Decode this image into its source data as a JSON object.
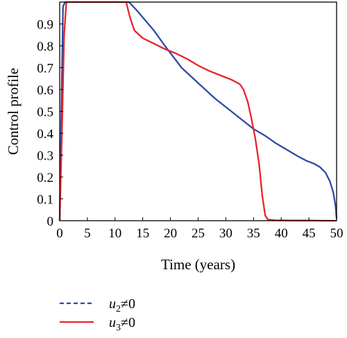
{
  "chart_data": {
    "type": "line",
    "title": "",
    "xlabel": "Time (years)",
    "ylabel": "Control profile",
    "xlim": [
      0,
      50
    ],
    "ylim": [
      0,
      1
    ],
    "xticks": [
      0,
      5,
      10,
      15,
      20,
      25,
      30,
      35,
      40,
      45,
      50
    ],
    "yticks": [
      0,
      0.1,
      0.2,
      0.3,
      0.4,
      0.5,
      0.6,
      0.7,
      0.8,
      0.9
    ],
    "xtick_labels": [
      "0",
      "5",
      "10",
      "15",
      "20",
      "25",
      "30",
      "35",
      "40",
      "45",
      "50"
    ],
    "ytick_labels": [
      "0",
      "0.1",
      "0.2",
      "0.3",
      "0.4",
      "0.5",
      "0.6",
      "0.7",
      "0.8",
      "0.9"
    ],
    "grid": false,
    "legend_placement": "bottom-left",
    "series": [
      {
        "name": "u2≠0",
        "legend_var": "u",
        "legend_sub": "2",
        "legend_rel": "≠0",
        "color": "#2e4aa8",
        "legend_style": "dashed",
        "x": [
          0,
          0.3,
          0.6,
          1,
          3,
          6,
          9,
          11,
          12.5,
          14,
          17,
          19,
          22,
          25,
          28,
          31,
          33,
          35,
          37,
          39,
          41,
          43,
          44.5,
          46,
          47,
          48,
          48.8,
          49.4,
          49.8,
          50
        ],
        "y": [
          0,
          0.5,
          0.98,
          1,
          1,
          1,
          1,
          1,
          1,
          0.96,
          0.87,
          0.8,
          0.7,
          0.63,
          0.56,
          0.5,
          0.46,
          0.42,
          0.39,
          0.355,
          0.325,
          0.295,
          0.275,
          0.26,
          0.245,
          0.22,
          0.18,
          0.13,
          0.07,
          0.01
        ]
      },
      {
        "name": "u3≠0",
        "legend_var": "u",
        "legend_sub": "3",
        "legend_rel": "≠0",
        "color": "#e8242b",
        "legend_style": "solid",
        "x": [
          0,
          0.4,
          0.8,
          1.2,
          3,
          6,
          9,
          11,
          12,
          12.7,
          13.5,
          15,
          17,
          19,
          21,
          23,
          25,
          27,
          29,
          31,
          32.5,
          33.2,
          34,
          34.6,
          35.3,
          36,
          36.6,
          37.1,
          37.6,
          39,
          42,
          45,
          48,
          50
        ],
        "y": [
          0,
          0.4,
          0.85,
          1,
          1,
          1,
          1,
          1,
          1,
          0.93,
          0.87,
          0.835,
          0.81,
          0.785,
          0.765,
          0.74,
          0.71,
          0.685,
          0.665,
          0.645,
          0.625,
          0.6,
          0.54,
          0.47,
          0.38,
          0.26,
          0.11,
          0.025,
          0.005,
          0.002,
          0.001,
          0.001,
          0.0,
          0.0
        ]
      }
    ]
  }
}
